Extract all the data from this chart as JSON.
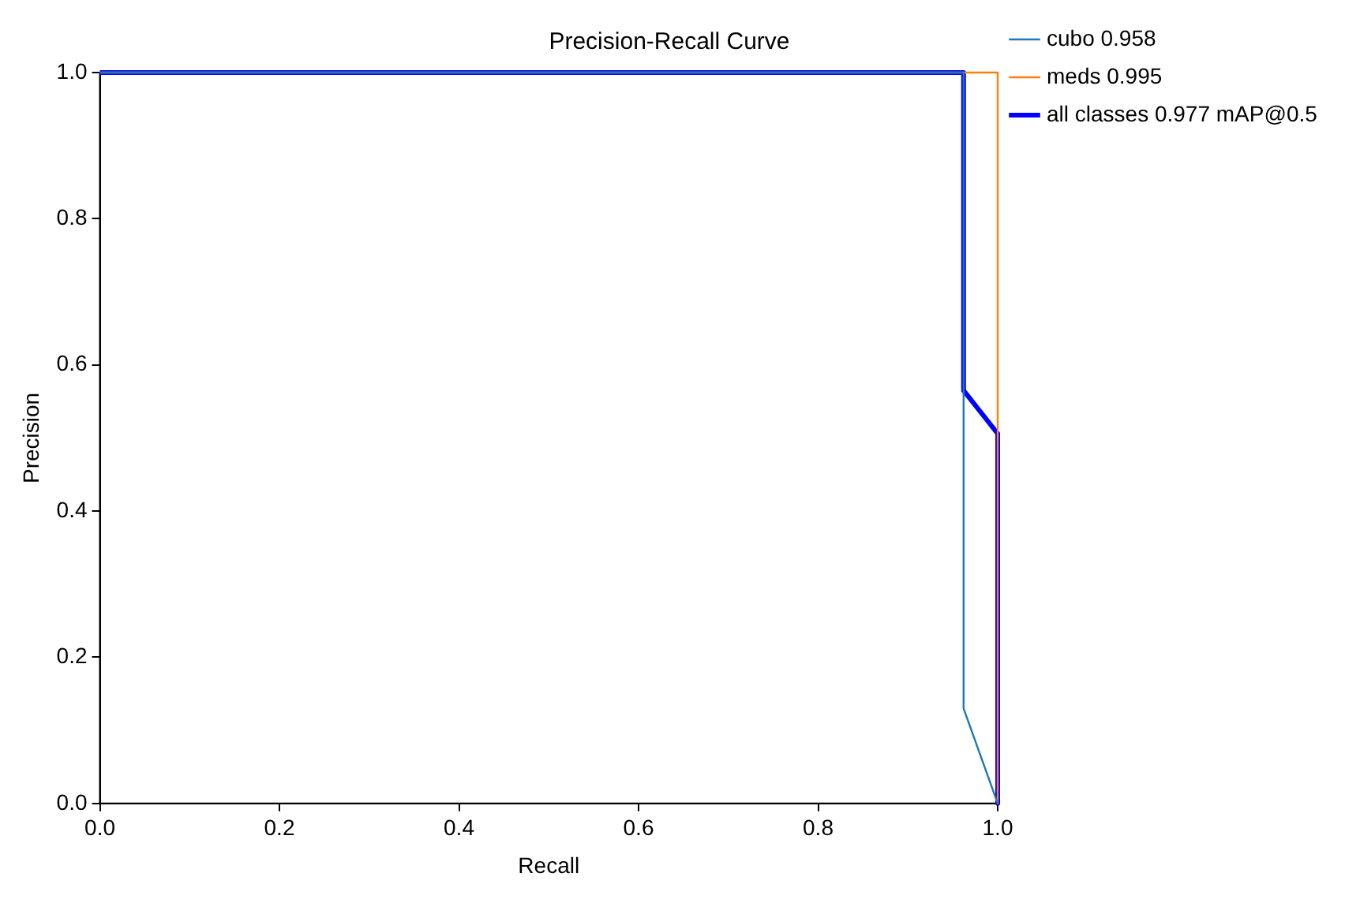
{
  "chart_data": {
    "type": "line",
    "title": "Precision-Recall Curve",
    "xlabel": "Recall",
    "ylabel": "Precision",
    "xlim": [
      0,
      1
    ],
    "ylim": [
      0,
      1
    ],
    "xticks": [
      {
        "value": 0,
        "label": "0.0"
      },
      {
        "value": 0.2,
        "label": "0.2"
      },
      {
        "value": 0.4,
        "label": "0.4"
      },
      {
        "value": 0.6,
        "label": "0.6"
      },
      {
        "value": 0.8,
        "label": "0.8"
      },
      {
        "value": 1,
        "label": "1.0"
      }
    ],
    "yticks": [
      {
        "value": 0,
        "label": "0.0"
      },
      {
        "value": 0.2,
        "label": "0.2"
      },
      {
        "value": 0.4,
        "label": "0.4"
      },
      {
        "value": 0.6,
        "label": "0.6"
      },
      {
        "value": 0.8,
        "label": "0.8"
      },
      {
        "value": 1,
        "label": "1.0"
      }
    ],
    "grid": false,
    "legend": "top right",
    "marker": "none",
    "line_style": "solid",
    "series": [
      {
        "name": "cubo 0.958",
        "color": "#1f77b4",
        "x": [
          0,
          0.962,
          0.962,
          1
        ],
        "values": [
          1,
          1,
          0.13,
          0
        ]
      },
      {
        "name": "meds 0.995",
        "color": "#ff7f0e",
        "x": [
          0,
          1,
          1
        ],
        "values": [
          1,
          1,
          0
        ]
      },
      {
        "name": "all classes 0.977 mAP@0.5",
        "color": "#0000ff",
        "x": [
          0,
          0.962,
          0.962,
          1,
          1
        ],
        "values": [
          1,
          1,
          0.565,
          0.506,
          0
        ]
      }
    ]
  }
}
